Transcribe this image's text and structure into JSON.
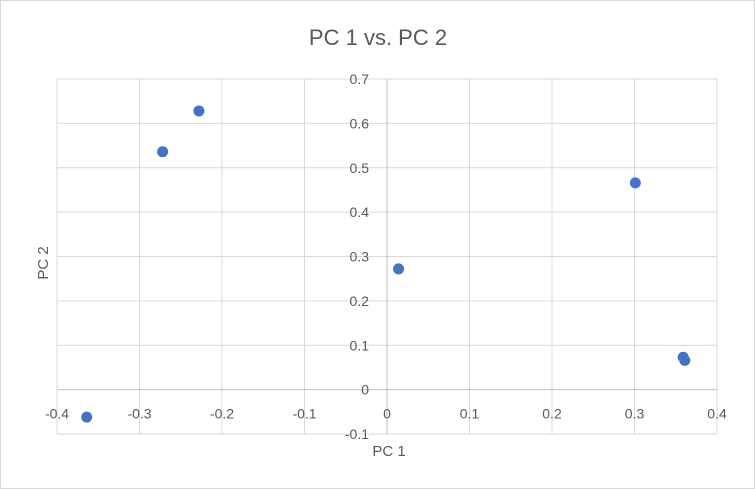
{
  "chart_data": {
    "type": "scatter",
    "title": "PC 1 vs. PC 2",
    "xlabel": "PC 1",
    "ylabel": "PC 2",
    "xlim": [
      -0.4,
      0.4
    ],
    "ylim": [
      -0.1,
      0.7
    ],
    "x_ticks": [
      "-0.4",
      "-0.3",
      "-0.2",
      "-0.1",
      "0",
      "0.1",
      "0.2",
      "0.3",
      "0.4"
    ],
    "y_ticks": [
      "-0.1",
      "0",
      "0.1",
      "0.2",
      "0.3",
      "0.4",
      "0.5",
      "0.6",
      "0.7"
    ],
    "grid": true,
    "legend": "none",
    "marker_color": "#4472c4",
    "series": [
      {
        "points": [
          {
            "x": -0.364,
            "y": -0.062
          },
          {
            "x": -0.272,
            "y": 0.536
          },
          {
            "x": -0.228,
            "y": 0.628
          },
          {
            "x": 0.014,
            "y": 0.272
          },
          {
            "x": 0.301,
            "y": 0.466
          },
          {
            "x": 0.359,
            "y": 0.073
          },
          {
            "x": 0.361,
            "y": 0.066
          }
        ]
      }
    ]
  }
}
